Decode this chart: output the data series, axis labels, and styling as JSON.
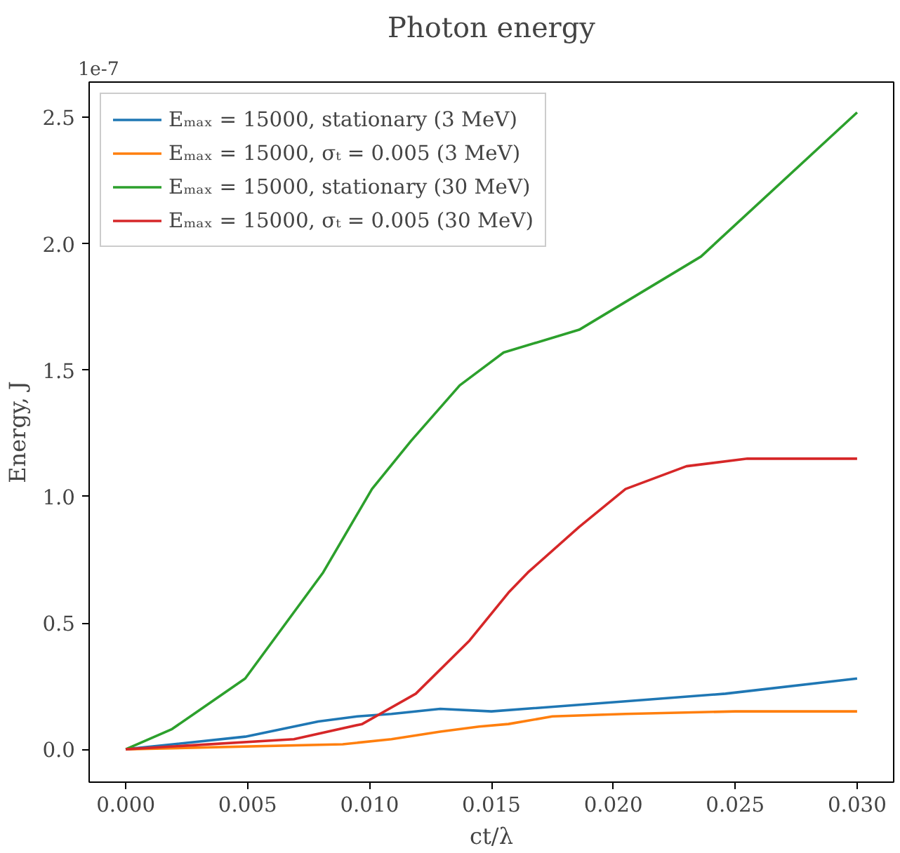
{
  "chart_data": {
    "type": "line",
    "title": "Photon energy",
    "xlabel": "ct/λ",
    "ylabel": "Energy, J",
    "annotations": [
      "1e-7"
    ],
    "xlim": [
      -0.0015,
      0.0315
    ],
    "ylim": [
      -0.13,
      2.64
    ],
    "xticks": [
      {
        "value": 0,
        "label": "0.000"
      },
      {
        "value": 0.005,
        "label": "0.005"
      },
      {
        "value": 0.01,
        "label": "0.010"
      },
      {
        "value": 0.015,
        "label": "0.015"
      },
      {
        "value": 0.02,
        "label": "0.020"
      },
      {
        "value": 0.025,
        "label": "0.025"
      },
      {
        "value": 0.03,
        "label": "0.030"
      }
    ],
    "yticks": [
      {
        "value": 0,
        "label": "0.0"
      },
      {
        "value": 0.5,
        "label": "0.5"
      },
      {
        "value": 1,
        "label": "1.0"
      },
      {
        "value": 1.5,
        "label": "1.5"
      },
      {
        "value": 2,
        "label": "2.0"
      },
      {
        "value": 2.5,
        "label": "2.5"
      }
    ],
    "grid": false,
    "legend": "top left",
    "line_style": "solid",
    "series": [
      {
        "name": "Eₘₐₓ = 15000, stationary (3 MeV)",
        "color": "#1f77b4",
        "x": [
          0,
          0.0049,
          0.0079,
          0.0095,
          0.0109,
          0.0129,
          0.015,
          0.0205,
          0.0246,
          0.03
        ],
        "values": [
          0,
          0.05,
          0.11,
          0.13,
          0.14,
          0.16,
          0.15,
          0.19,
          0.22,
          0.28
        ]
      },
      {
        "name": "Eₘₐₓ = 15000, σₜ = 0.005 (3 MeV)",
        "color": "#ff7f0e",
        "x": [
          0,
          0.0089,
          0.0109,
          0.0129,
          0.0145,
          0.0157,
          0.0175,
          0.0205,
          0.025,
          0.03
        ],
        "values": [
          0,
          0.02,
          0.04,
          0.07,
          0.09,
          0.1,
          0.13,
          0.14,
          0.15,
          0.15
        ]
      },
      {
        "name": "Eₘₐₓ = 15000, stationary (30 MeV)",
        "color": "#2ca02c",
        "x": [
          0,
          0.0019,
          0.0049,
          0.0081,
          0.0101,
          0.0117,
          0.0137,
          0.0155,
          0.0186,
          0.0236,
          0.03
        ],
        "values": [
          0,
          0.08,
          0.28,
          0.7,
          1.03,
          1.22,
          1.44,
          1.57,
          1.66,
          1.95,
          2.52
        ]
      },
      {
        "name": "Eₘₐₓ = 15000, σₜ = 0.005 (30 MeV)",
        "color": "#d62728",
        "x": [
          0,
          0.0069,
          0.0097,
          0.0119,
          0.0141,
          0.0157,
          0.0165,
          0.0186,
          0.0205,
          0.023,
          0.0255,
          0.03
        ],
        "values": [
          0,
          0.04,
          0.1,
          0.22,
          0.43,
          0.62,
          0.7,
          0.88,
          1.03,
          1.12,
          1.15,
          1.15
        ]
      }
    ]
  }
}
